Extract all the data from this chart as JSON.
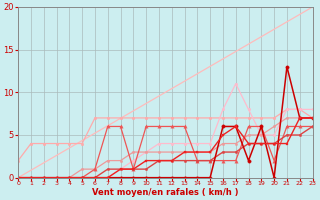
{
  "background_color": "#cceef0",
  "grid_color": "#aabbbb",
  "xlabel": "Vent moyen/en rafales ( km/h )",
  "xlim": [
    0,
    23
  ],
  "ylim": [
    0,
    20
  ],
  "yticks": [
    0,
    5,
    10,
    15,
    20
  ],
  "xticks": [
    0,
    1,
    2,
    3,
    4,
    5,
    6,
    7,
    8,
    9,
    10,
    11,
    12,
    13,
    14,
    15,
    16,
    17,
    18,
    19,
    20,
    21,
    22,
    23
  ],
  "series": [
    {
      "x": [
        0,
        23
      ],
      "y": [
        0,
        20
      ],
      "color": "#ffbbbb",
      "linewidth": 0.9,
      "marker": null
    },
    {
      "x": [
        0,
        1,
        2,
        3,
        4,
        5,
        6,
        7,
        8,
        9,
        10,
        11,
        12,
        13,
        14,
        15,
        16,
        17,
        18,
        19,
        20,
        21,
        22,
        23
      ],
      "y": [
        2,
        4,
        4,
        4,
        4,
        4,
        7,
        7,
        7,
        7,
        7,
        7,
        7,
        7,
        7,
        7,
        7,
        7,
        7,
        7,
        7,
        8,
        8,
        7
      ],
      "color": "#ffaaaa",
      "linewidth": 0.9,
      "marker": "o",
      "markersize": 2.0
    },
    {
      "x": [
        0,
        1,
        2,
        3,
        4,
        5,
        6,
        7,
        8,
        9,
        10,
        11,
        12,
        13,
        14,
        15,
        16,
        17,
        18,
        19,
        20,
        21,
        22,
        23
      ],
      "y": [
        0,
        0,
        0,
        0,
        0,
        0,
        0,
        0,
        1,
        2,
        3,
        4,
        4,
        4,
        4,
        4,
        8,
        11,
        8,
        5,
        5,
        8,
        8,
        8
      ],
      "color": "#ffbbcc",
      "linewidth": 0.9,
      "marker": "o",
      "markersize": 2.0
    },
    {
      "x": [
        0,
        1,
        2,
        3,
        4,
        5,
        6,
        7,
        8,
        9,
        10,
        11,
        12,
        13,
        14,
        15,
        16,
        17,
        18,
        19,
        20,
        21,
        22,
        23
      ],
      "y": [
        0,
        0,
        0,
        0,
        0,
        1,
        1,
        2,
        2,
        3,
        3,
        3,
        3,
        3,
        3,
        3,
        4,
        4,
        5,
        5,
        6,
        7,
        7,
        7
      ],
      "color": "#ee9999",
      "linewidth": 0.9,
      "marker": "o",
      "markersize": 1.8
    },
    {
      "x": [
        0,
        1,
        2,
        3,
        4,
        5,
        6,
        7,
        8,
        9,
        10,
        11,
        12,
        13,
        14,
        15,
        16,
        17,
        18,
        19,
        20,
        21,
        22,
        23
      ],
      "y": [
        0,
        0,
        0,
        0,
        0,
        0,
        1,
        6,
        6,
        1,
        6,
        6,
        6,
        6,
        2,
        2,
        2,
        2,
        6,
        6,
        2,
        6,
        6,
        6
      ],
      "color": "#ee5555",
      "linewidth": 0.9,
      "marker": "^",
      "markersize": 2.5
    },
    {
      "x": [
        0,
        1,
        2,
        3,
        4,
        5,
        6,
        7,
        8,
        9,
        10,
        11,
        12,
        13,
        14,
        15,
        16,
        17,
        18,
        19,
        20,
        21,
        22,
        23
      ],
      "y": [
        0,
        0,
        0,
        0,
        0,
        0,
        0,
        1,
        1,
        1,
        1,
        2,
        2,
        2,
        2,
        2,
        3,
        3,
        4,
        4,
        4,
        5,
        5,
        6
      ],
      "color": "#dd4444",
      "linewidth": 1.0,
      "marker": "o",
      "markersize": 1.8
    },
    {
      "x": [
        0,
        1,
        2,
        3,
        4,
        5,
        6,
        7,
        8,
        9,
        10,
        11,
        12,
        13,
        14,
        15,
        16,
        17,
        18,
        19,
        20,
        21,
        22,
        23
      ],
      "y": [
        0,
        0,
        0,
        0,
        0,
        0,
        0,
        0,
        0,
        0,
        0,
        0,
        0,
        0,
        0,
        0,
        6,
        6,
        2,
        6,
        0,
        13,
        7,
        7
      ],
      "color": "#cc0000",
      "linewidth": 1.1,
      "marker": "o",
      "markersize": 2.5
    },
    {
      "x": [
        0,
        1,
        2,
        3,
        4,
        5,
        6,
        7,
        8,
        9,
        10,
        11,
        12,
        13,
        14,
        15,
        16,
        17,
        18,
        19,
        20,
        21,
        22,
        23
      ],
      "y": [
        0,
        0,
        0,
        0,
        0,
        0,
        0,
        0,
        1,
        1,
        2,
        2,
        2,
        3,
        3,
        3,
        5,
        6,
        4,
        4,
        4,
        4,
        7,
        7
      ],
      "color": "#ee2222",
      "linewidth": 1.0,
      "marker": "s",
      "markersize": 1.8
    }
  ],
  "xlabel_color": "#cc0000",
  "tick_color": "#cc0000",
  "axis_color": "#888888"
}
